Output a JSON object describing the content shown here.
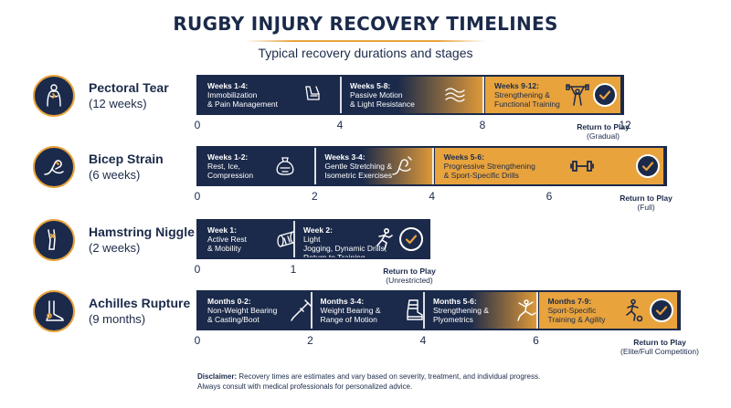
{
  "title": "RUGBY INJURY RECOVERY TIMELINES",
  "subtitle": "Typical recovery durations and stages",
  "colors": {
    "navy": "#1b2a4a",
    "gold": "#e8a33d",
    "white": "#ffffff"
  },
  "injuries": [
    {
      "name": "Pectoral Tear",
      "duration": "(12 weeks)",
      "icon": "chest-pain-icon",
      "total": 12,
      "ticks": [
        "0",
        "4",
        "8",
        "12"
      ],
      "tick_values": [
        0,
        4,
        8,
        12
      ],
      "stages": [
        {
          "title": "Weeks 1-4:",
          "line1": "Immobilization",
          "line2": "& Pain Management",
          "line3": "",
          "icon": "arm-sling-icon",
          "start": 0,
          "end": 4,
          "style": "navy"
        },
        {
          "title": "Weeks 5-8:",
          "line1": "Passive Motion",
          "line2": "& Light Resistance",
          "line3": "",
          "icon": "motion-waves-icon",
          "start": 4,
          "end": 8,
          "style": "grad"
        },
        {
          "title": "Weeks 9-12:",
          "line1": "Strengthening &",
          "line2": "Functional Training",
          "line3": "",
          "icon": "weightlifter-icon",
          "start": 8,
          "end": 12,
          "style": "gold"
        }
      ],
      "rtp_main": "Return to Play",
      "rtp_sub": "(Gradual)"
    },
    {
      "name": "Bicep Strain",
      "duration": "(6 weeks)",
      "icon": "flexed-arm-icon",
      "total": 6,
      "ticks": [
        "0",
        "2",
        "4",
        "6"
      ],
      "tick_values": [
        0,
        2,
        4,
        6
      ],
      "stages": [
        {
          "title": "Weeks 1-2:",
          "line1": "Rest, Ice,",
          "line2": "Compression",
          "line3": "",
          "icon": "ice-pack-icon",
          "start": 0,
          "end": 2,
          "style": "navy"
        },
        {
          "title": "Weeks 3-4:",
          "line1": "Gentle Stretching &",
          "line2": "Isometric Exercises",
          "line3": "",
          "icon": "stretching-arm-icon",
          "start": 2,
          "end": 4,
          "style": "grad"
        },
        {
          "title": "Weeks 5-6:",
          "line1": "Progressive Strengthening",
          "line2": "& Sport-Specific Drills",
          "line3": "",
          "icon": "dumbbell-icon",
          "start": 4,
          "end": 6,
          "style": "gold"
        }
      ],
      "rtp_main": "Return to Play",
      "rtp_sub": "(Full)"
    },
    {
      "name": "Hamstring Niggle",
      "duration": "(2 weeks)",
      "icon": "leg-pain-icon",
      "total": 2,
      "ticks": [
        "0",
        "1"
      ],
      "tick_values": [
        0,
        1
      ],
      "stages": [
        {
          "title": "Week 1:",
          "line1": "Active Rest",
          "line2": "& Mobility",
          "line3": "",
          "icon": "foam-roller-icon",
          "start": 0,
          "end": 1,
          "style": "navy"
        },
        {
          "title": "Week 2:",
          "line1": "Light",
          "line2": "Jogging, Dynamic Drills,",
          "line3": "Return to Training",
          "icon": "runner-icon",
          "start": 1,
          "end": 2,
          "style": "navy"
        }
      ],
      "rtp_main": "Return to Play",
      "rtp_sub": "(Unrestricted)"
    },
    {
      "name": "Achilles Rupture",
      "duration": "(9 months)",
      "icon": "foot-heel-icon",
      "total": 9,
      "ticks": [
        "0",
        "2",
        "4",
        "6"
      ],
      "tick_values": [
        0,
        2,
        4,
        6
      ],
      "stages": [
        {
          "title": "Months 0-2:",
          "line1": "Non-Weight Bearing",
          "line2": "& Casting/Boot",
          "line3": "",
          "icon": "crutch-icon",
          "start": 0,
          "end": 2,
          "style": "navy"
        },
        {
          "title": "Months 3-4:",
          "line1": "Weight Bearing &",
          "line2": "Range of Motion",
          "line3": "",
          "icon": "walking-boot-icon",
          "start": 2,
          "end": 4,
          "style": "navy"
        },
        {
          "title": "Months 5-6:",
          "line1": "Strengthening &",
          "line2": "Plyometrics",
          "line3": "",
          "icon": "jumping-person-icon",
          "start": 4,
          "end": 6,
          "style": "grad"
        },
        {
          "title": "Months 7-9:",
          "line1": "Sport-Specific",
          "line2": "Training & Agility",
          "line3": "",
          "icon": "soccer-player-icon",
          "start": 6,
          "end": 9,
          "style": "gold"
        }
      ],
      "rtp_main": "Return to Play",
      "rtp_sub": "(Elite/Full Competition)"
    }
  ],
  "disclaimer": {
    "label": "Disclaimer:",
    "line1": "Recovery times are estimates and vary based on severity, treatment, and individual progress.",
    "line2": "Always consult with medical professionals for personalized advice."
  }
}
